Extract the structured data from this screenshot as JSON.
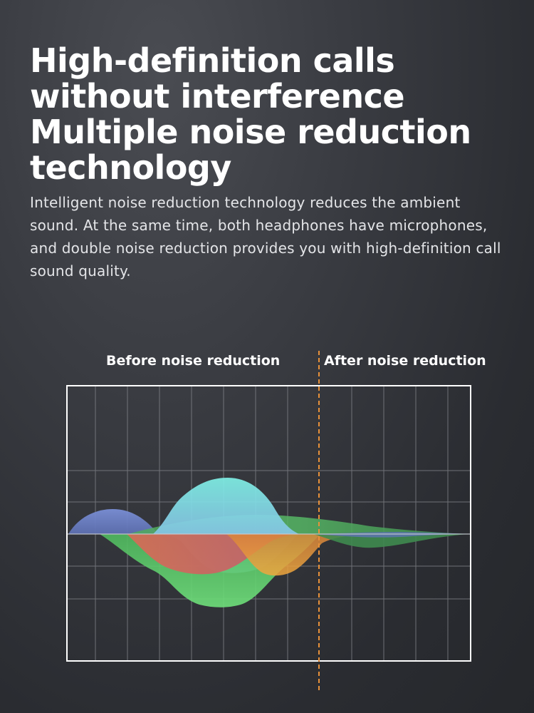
{
  "headline": {
    "lines": [
      "High-definition calls",
      "without interference",
      "Multiple noise reduction",
      "technology"
    ]
  },
  "description": "Intelligent noise reduction technology reduces the ambient sound. At the same time, both headphones have microphones, and double noise reduction provides you with high-definition call sound quality.",
  "diagram": {
    "before_label": "Before noise reduction",
    "after_label": "After noise reduction",
    "colors": {
      "frame": "#ffffff",
      "divider": "#e8913a",
      "blue_wave": "#6f86c9",
      "cyan_wave": "#7fe3e0",
      "green_wave": "#57c96a",
      "red_wave": "#e0605a",
      "orange_wave": "#e89a3c"
    }
  }
}
